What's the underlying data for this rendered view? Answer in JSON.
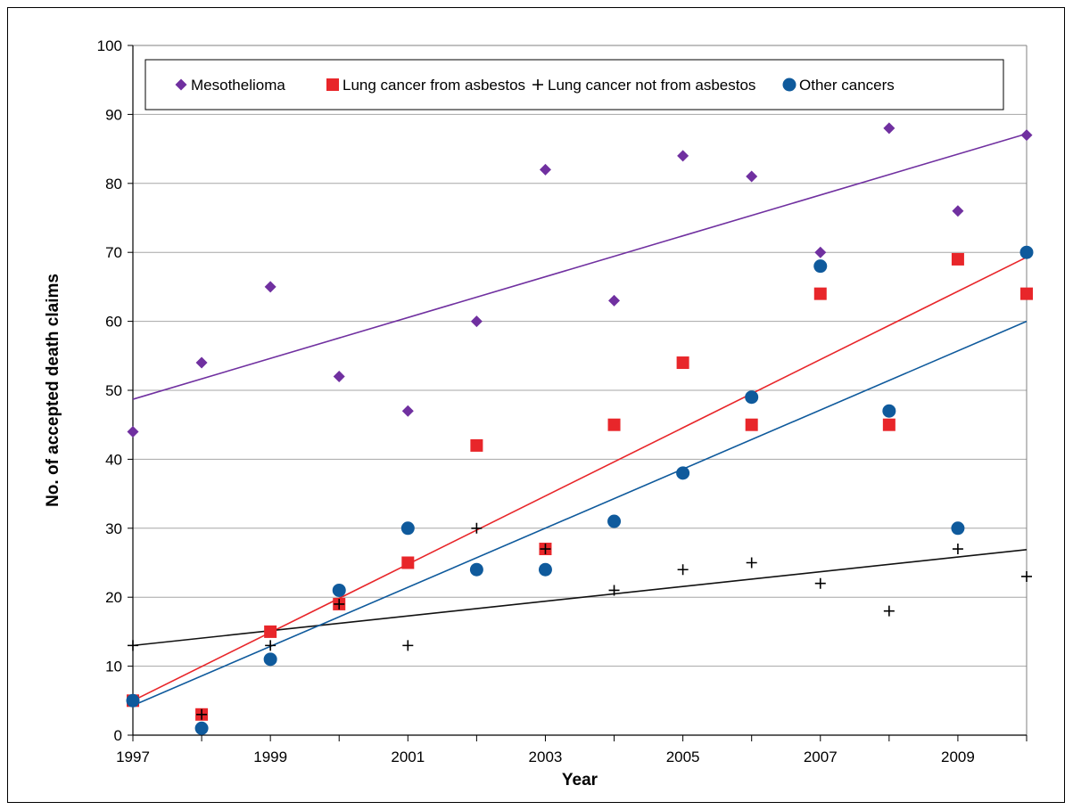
{
  "chart_data": {
    "type": "scatter",
    "xlabel": "Year",
    "ylabel": "No. of accepted death claims",
    "xlim": [
      1997,
      2010
    ],
    "ylim": [
      0,
      100
    ],
    "x_ticks": [
      1997,
      1999,
      2001,
      2003,
      2005,
      2007,
      2009
    ],
    "y_ticks": [
      0,
      10,
      20,
      30,
      40,
      50,
      60,
      70,
      80,
      90,
      100
    ],
    "grid": "horizontal",
    "legend_position": "top",
    "series": [
      {
        "name": "Mesothelioma",
        "marker": "diamond",
        "color": "#7030A0",
        "x": [
          1997,
          1998,
          1999,
          2000,
          2001,
          2002,
          2003,
          2004,
          2005,
          2006,
          2007,
          2008,
          2009,
          2010
        ],
        "y": [
          44,
          54,
          65,
          52,
          47,
          60,
          82,
          63,
          84,
          81,
          70,
          88,
          76,
          87
        ],
        "trend": [
          48.7,
          87.2
        ]
      },
      {
        "name": "Lung cancer from asbestos",
        "marker": "square",
        "color": "#E8262A",
        "x": [
          1997,
          1998,
          1999,
          2000,
          2001,
          2002,
          2003,
          2004,
          2005,
          2006,
          2007,
          2008,
          2009,
          2010
        ],
        "y": [
          5,
          3,
          15,
          19,
          25,
          42,
          27,
          45,
          54,
          45,
          64,
          45,
          69,
          64
        ],
        "trend": [
          5.0,
          69.3
        ]
      },
      {
        "name": "Lung cancer not from asbestos",
        "marker": "plus",
        "color": "#000000",
        "x": [
          1997,
          1998,
          1999,
          2000,
          2001,
          2002,
          2003,
          2004,
          2005,
          2006,
          2007,
          2008,
          2009,
          2010
        ],
        "y": [
          13,
          3,
          13,
          19,
          13,
          30,
          27,
          21,
          24,
          25,
          22,
          18,
          27,
          23
        ],
        "trend": [
          13.0,
          26.9
        ]
      },
      {
        "name": "Other cancers",
        "marker": "circle",
        "color": "#0F5A9C",
        "x": [
          1997,
          1998,
          1999,
          2000,
          2001,
          2002,
          2003,
          2004,
          2005,
          2006,
          2007,
          2008,
          2009,
          2010
        ],
        "y": [
          5,
          1,
          11,
          21,
          30,
          24,
          24,
          31,
          38,
          49,
          68,
          47,
          30,
          70
        ],
        "trend": [
          4.3,
          60.0
        ]
      }
    ]
  }
}
